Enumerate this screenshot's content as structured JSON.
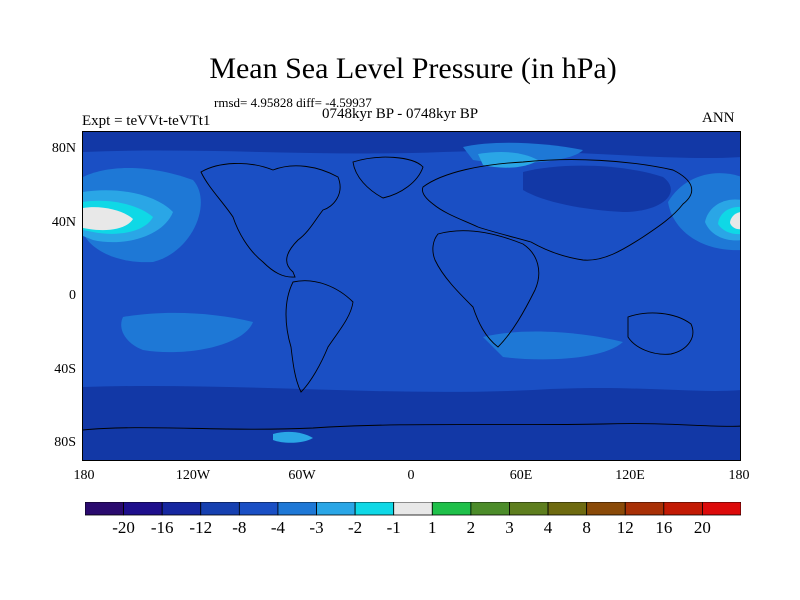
{
  "title": "Mean Sea Level Pressure (in hPa)",
  "stats": "rmsd= 4.95828 diff= -4.59937",
  "period": "0748kyr BP - 0748kyr BP",
  "experiment": "Expt = teVVt-teVTt1",
  "season": "ANN",
  "map": {
    "lat_ticks": [
      "80N",
      "40N",
      "0",
      "40S",
      "80S"
    ],
    "lon_ticks": [
      "180",
      "120W",
      "60W",
      "0",
      "60E",
      "120E",
      "180"
    ],
    "colors": {
      "ocean_base": "#1a4fc4",
      "continent": "#1c4cc0",
      "medium": "#1e78d6",
      "light": "#2aa6e6",
      "cyan": "#0fd8e6",
      "white": "#e8e8e8",
      "dark": "#1238a6",
      "coast": "#000000"
    }
  },
  "colorbar": {
    "tick_labels": [
      "-20",
      "-16",
      "-12",
      "-8",
      "-4",
      "-3",
      "-2",
      "-1",
      "1",
      "2",
      "3",
      "4",
      "8",
      "12",
      "16",
      "20"
    ],
    "colors": [
      "#2a0a6e",
      "#1e0f8c",
      "#1627a0",
      "#1640b0",
      "#1a4fc4",
      "#1e78d6",
      "#2aa6e6",
      "#0fd8e6",
      "#e8e8e8",
      "#1fc04a",
      "#4c8c2a",
      "#5e7e1e",
      "#6e6a10",
      "#8a4a08",
      "#a83006",
      "#c21a04",
      "#dc0a0a"
    ]
  }
}
